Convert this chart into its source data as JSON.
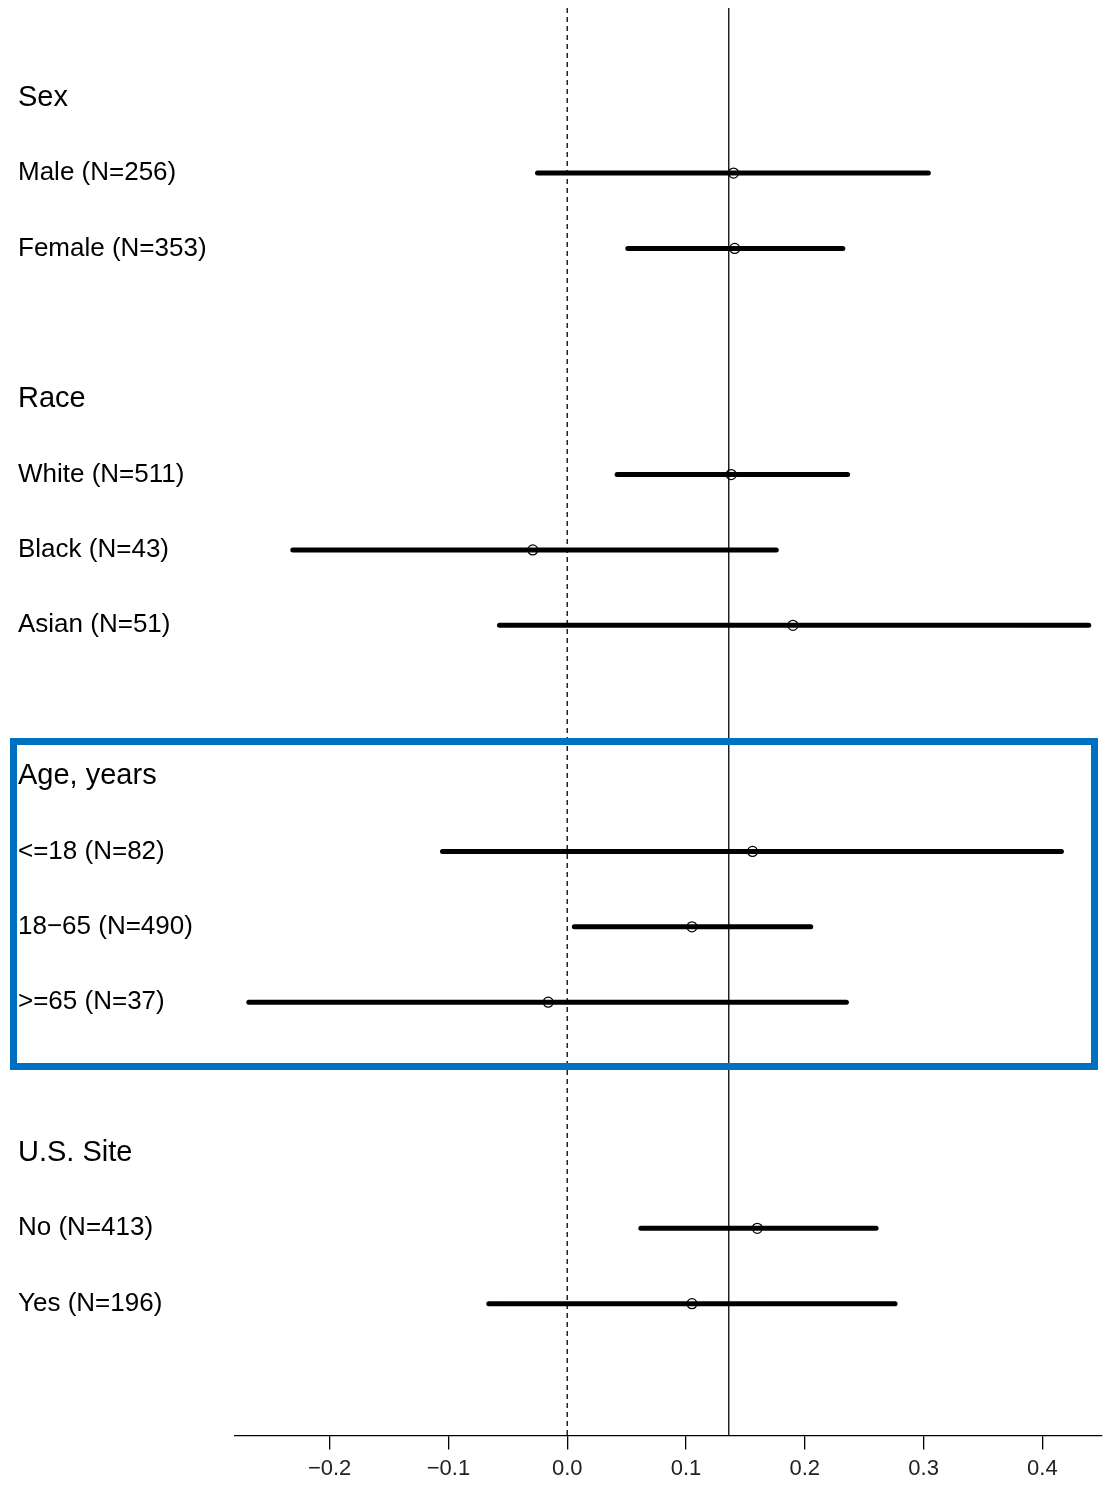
{
  "chart_data": {
    "type": "scatter",
    "orientation": "horizontal",
    "categories": [
      "Sex",
      "Male (N=256)",
      "Female (N=353)",
      null,
      "Race",
      "White (N=511)",
      "Black (N=43)",
      "Asian (N=51)",
      null,
      "Age, years",
      "<=18 (N=82)",
      "18−65 (N=490)",
      ">=65 (N=37)",
      null,
      "U.S. Site",
      "No (N=413)",
      "Yes (N=196)"
    ],
    "values": [
      null,
      0.14,
      0.141,
      null,
      null,
      0.138,
      -0.029,
      0.19,
      null,
      null,
      0.156,
      0.105,
      -0.016,
      null,
      null,
      0.16,
      0.105
    ],
    "errors": [
      null,
      [
        -0.025,
        0.304
      ],
      [
        0.051,
        0.232
      ],
      null,
      null,
      [
        0.042,
        0.236
      ],
      [
        -0.231,
        0.176
      ],
      [
        -0.057,
        0.439
      ],
      null,
      null,
      [
        -0.105,
        0.416
      ],
      [
        0.006,
        0.205
      ],
      [
        -0.268,
        0.235
      ],
      null,
      null,
      [
        0.062,
        0.26
      ],
      [
        -0.066,
        0.276
      ]
    ],
    "color": "#000000",
    "marker": "circle",
    "xlim": [
      -0.28,
      0.45
    ],
    "xticks": [
      {
        "value": -0.2,
        "label": "−0.2"
      },
      {
        "value": -0.1,
        "label": "−0.1"
      },
      {
        "value": 0,
        "label": "0.0"
      },
      0.1,
      0.2,
      0.3,
      0.4
    ],
    "ref_lines": [
      {
        "axis": "x",
        "value": 0,
        "line_style": "dashed"
      },
      {
        "axis": "x",
        "value": 0.136,
        "line_style": "solid"
      }
    ],
    "grid": false,
    "legend": false
  }
}
